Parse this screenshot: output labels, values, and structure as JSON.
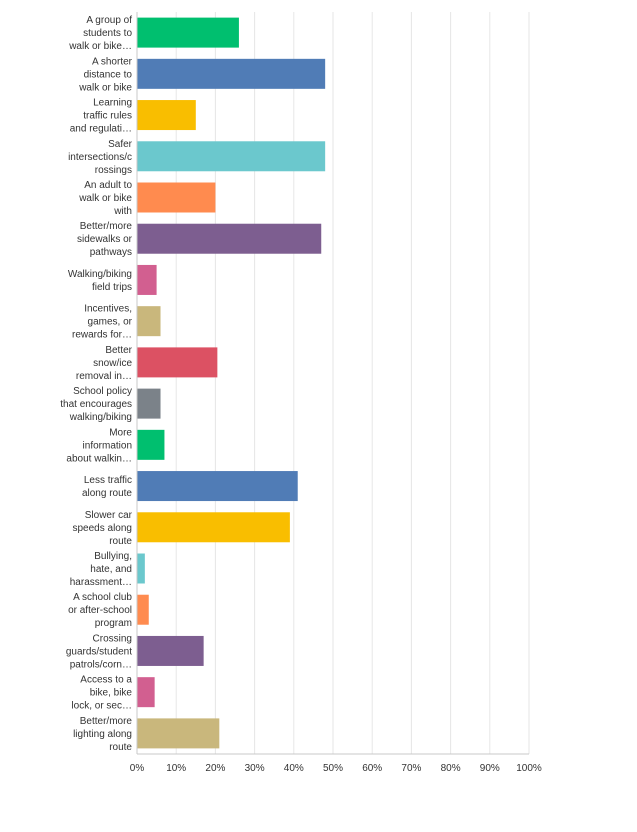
{
  "chart_data": {
    "type": "bar",
    "orientation": "horizontal",
    "categories": [
      [
        "A group of",
        "students to",
        "walk or bike…"
      ],
      [
        "A shorter",
        "distance to",
        "walk or bike"
      ],
      [
        "Learning",
        "traffic rules",
        "and regulati…"
      ],
      [
        "Safer",
        "intersections/c",
        "rossings"
      ],
      [
        "An adult to",
        "walk or bike",
        "with"
      ],
      [
        "Better/more",
        "sidewalks or",
        "pathways"
      ],
      [
        "Walking/biking",
        "field trips"
      ],
      [
        "Incentives,",
        "games, or",
        "rewards for…"
      ],
      [
        "Better",
        "snow/ice",
        "removal in…"
      ],
      [
        "School policy",
        "that encourages",
        "walking/biking"
      ],
      [
        "More",
        "information",
        "about walkin…"
      ],
      [
        "Less traffic",
        "along route"
      ],
      [
        "Slower car",
        "speeds along",
        "route"
      ],
      [
        "Bullying,",
        "hate, and",
        "harassment…"
      ],
      [
        "A school club",
        "or after-school",
        "program"
      ],
      [
        "Crossing",
        "guards/student",
        "patrols/corn…"
      ],
      [
        "Access to a",
        "bike, bike",
        "lock, or sec…"
      ],
      [
        "Better/more",
        "lighting along",
        "route"
      ]
    ],
    "values": [
      26,
      48,
      15,
      48,
      20,
      47,
      5,
      6,
      20.5,
      6,
      7,
      41,
      39,
      2,
      3,
      17,
      4.5,
      21
    ],
    "colors": [
      "#00bf6f",
      "#507cb6",
      "#f9be00",
      "#6bc8cd",
      "#ff8b4f",
      "#7d5e90",
      "#d25f90",
      "#c9b77c",
      "#dc5163",
      "#7b8289",
      "#00bf6f",
      "#507cb6",
      "#f9be00",
      "#6bc8cd",
      "#ff8b4f",
      "#7d5e90",
      "#d25f90",
      "#c9b77c"
    ],
    "x_ticks": [
      "0%",
      "10%",
      "20%",
      "30%",
      "40%",
      "50%",
      "60%",
      "70%",
      "80%",
      "90%",
      "100%"
    ],
    "xlim": [
      0,
      100
    ],
    "grid": true,
    "legend": "none"
  }
}
